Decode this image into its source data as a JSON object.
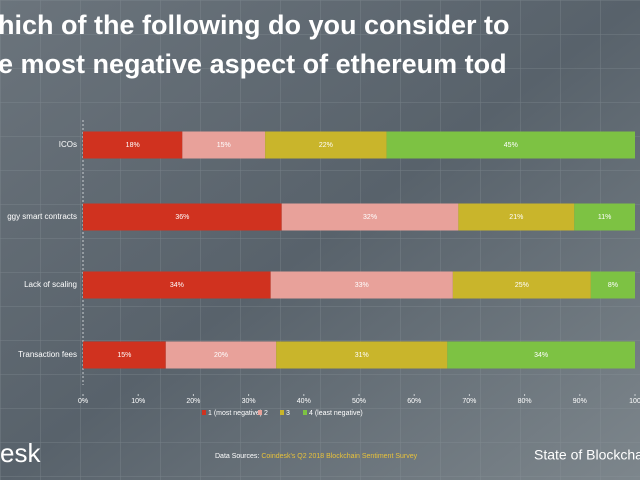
{
  "chart_data": {
    "type": "stacked_barh",
    "title": [
      "hich of the following do you consider to",
      "e most negative aspect of ethereum tod"
    ],
    "categories": [
      "ICOs",
      "ggy smart contracts",
      "Lack of scaling",
      "Transaction fees"
    ],
    "series": [
      {
        "name": "1 (most negative)",
        "color": "#d0321f",
        "values": [
          18,
          36,
          34,
          15
        ],
        "value_labels": [
          "18%",
          "36%",
          "34%",
          "15%"
        ]
      },
      {
        "name": "2",
        "color": "#e8a19a",
        "values": [
          15,
          32,
          33,
          20
        ],
        "value_labels": [
          "15%",
          "32%",
          "33%",
          "20%"
        ]
      },
      {
        "name": "3",
        "color": "#c9b52b",
        "values": [
          22,
          21,
          25,
          31
        ],
        "value_labels": [
          "22%",
          "21%",
          "25%",
          "31%"
        ]
      },
      {
        "name": "4 (least negative)",
        "color": "#7dc243",
        "values": [
          45,
          11,
          8,
          34
        ],
        "value_labels": [
          "45%",
          "11%",
          "8%",
          "34%"
        ]
      }
    ],
    "xlim": [
      0,
      100
    ],
    "xticks": [
      {
        "value": 0,
        "label": "0%"
      },
      {
        "value": 10,
        "label": "10%"
      },
      {
        "value": 20,
        "label": "20%"
      },
      {
        "value": 30,
        "label": "30%"
      },
      {
        "value": 40,
        "label": "40%"
      },
      {
        "value": 50,
        "label": "50%"
      },
      {
        "value": 60,
        "label": "60%"
      },
      {
        "value": 70,
        "label": "70%"
      },
      {
        "value": 80,
        "label": "80%"
      },
      {
        "value": 90,
        "label": "90%"
      },
      {
        "value": 100,
        "label": "100"
      }
    ],
    "source_prefix": "Data Sources:",
    "source": "Coindesk's Q2 2018 Blockchain Sentiment Survey",
    "logo": "esk",
    "footer_right": "State of Blockcha"
  }
}
